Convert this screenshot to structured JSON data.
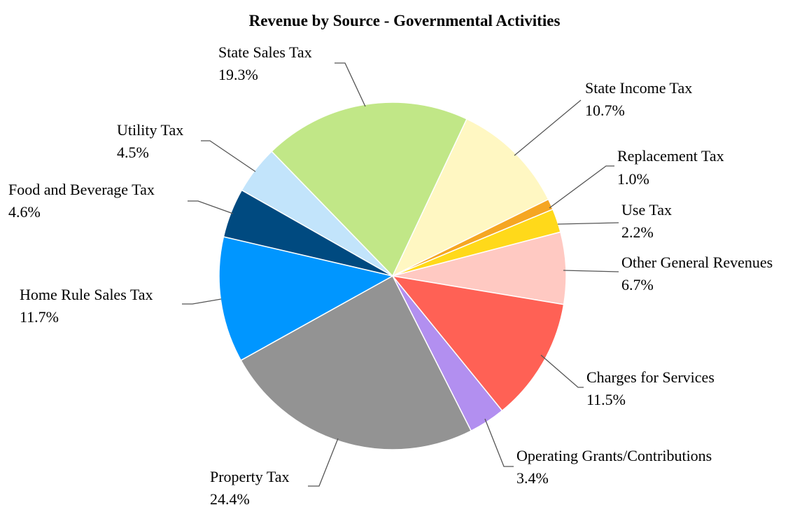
{
  "chart_data": {
    "type": "pie",
    "title": "Revenue by Source - Governmental Activities",
    "categories": [
      "State Income Tax",
      "Replacement Tax",
      "Use Tax",
      "Other General Revenues",
      "Charges for Services",
      "Operating Grants/Contributions",
      "Property Tax",
      "Home Rule Sales Tax",
      "Food and Beverage Tax",
      "Utility Tax",
      "State Sales Tax"
    ],
    "values": [
      10.7,
      1.0,
      2.2,
      6.7,
      11.5,
      3.4,
      24.4,
      11.7,
      4.6,
      4.5,
      19.3
    ],
    "value_labels": [
      "10.7%",
      "1.0%",
      "2.2%",
      "6.7%",
      "11.5%",
      "3.4%",
      "24.4%",
      "11.7%",
      "4.6%",
      "4.5%",
      "19.3%"
    ],
    "colors": [
      "#fff7c2",
      "#f5a623",
      "#ffd91a",
      "#ffc9c2",
      "#ff6155",
      "#b28ff0",
      "#939393",
      "#0096ff",
      "#004a80",
      "#c2e4fb",
      "#c1e787"
    ]
  }
}
